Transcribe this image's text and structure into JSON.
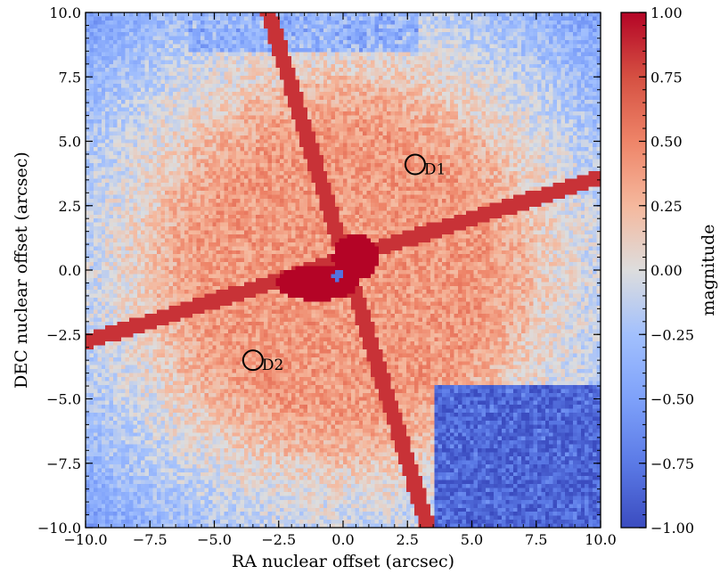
{
  "chart_data": {
    "type": "heatmap",
    "title": "",
    "xlabel": "RA nuclear offset (arcsec)",
    "ylabel": "DEC nuclear offset (arcsec)",
    "xlim": [
      -10.0,
      10.0
    ],
    "ylim": [
      -10.0,
      10.0
    ],
    "x_ticks": [
      -10.0,
      -7.5,
      -5.0,
      -2.5,
      0.0,
      2.5,
      5.0,
      7.5,
      10.0
    ],
    "y_ticks": [
      -10.0,
      -7.5,
      -5.0,
      -2.5,
      0.0,
      2.5,
      5.0,
      7.5,
      10.0
    ],
    "x_tick_labels": [
      "−10.0",
      "−7.5",
      "−5.0",
      "−2.5",
      "0.0",
      "2.5",
      "5.0",
      "7.5",
      "10.0"
    ],
    "y_tick_labels": [
      "−10.0",
      "−7.5",
      "−5.0",
      "−2.5",
      "0.0",
      "2.5",
      "5.0",
      "7.5",
      "10.0"
    ],
    "colorbar": {
      "label": "magnitude",
      "colormap": "coolwarm",
      "range": [
        -1.0,
        1.0
      ],
      "ticks": [
        -1.0,
        -0.75,
        -0.5,
        -0.25,
        0.0,
        0.25,
        0.5,
        0.75,
        1.0
      ],
      "tick_labels": [
        "−1.00",
        "−0.75",
        "−0.50",
        "−0.25",
        "0.00",
        "0.25",
        "0.50",
        "0.75",
        "1.00"
      ]
    },
    "markers": [
      {
        "label": "D1",
        "x": 2.8,
        "y": 4.1
      },
      {
        "label": "D2",
        "x": -3.5,
        "y": -3.5
      }
    ],
    "grid": false,
    "colors": {
      "blue_end": "#3b4cc0",
      "neutral": "#dddddd",
      "red_end": "#b40426"
    }
  }
}
